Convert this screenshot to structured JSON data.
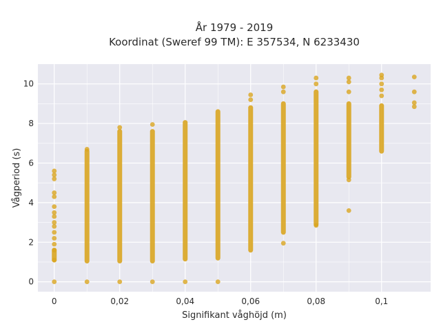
{
  "chart_data": {
    "type": "scatter",
    "title_line1": "År 1979 - 2019",
    "title_line2": "Koordinat (Sweref 99 TM): E 357534, N 6233430",
    "xlabel": "Signifikant våghöjd (m)",
    "ylabel": "Vågperiod (s)",
    "xlim": [
      -0.005,
      0.115
    ],
    "ylim": [
      -0.5,
      11
    ],
    "x_ticks": [
      0,
      0.02,
      0.04,
      0.06,
      0.08,
      0.1
    ],
    "x_tick_labels": [
      "0",
      "0,02",
      "0,04",
      "0,06",
      "0,08",
      "0,1"
    ],
    "y_ticks": [
      0,
      2,
      4,
      6,
      8,
      10
    ],
    "y_tick_labels": [
      "0",
      "2",
      "4",
      "6",
      "8",
      "10"
    ],
    "grid": true,
    "colors": {
      "marker": "#d9a521",
      "plot_bg": "#e8e8f0",
      "grid": "#ffffff"
    },
    "series": [
      {
        "points": [
          {
            "x": 0,
            "y": [
              0,
              1.1,
              1.6,
              1.9,
              2.2,
              2.5,
              2.8,
              3.0,
              3.3,
              3.5,
              3.8,
              4.3,
              4.5,
              5.2,
              5.4,
              5.6
            ]
          },
          {
            "x": 0,
            "range": [
              1.1,
              1.6
            ]
          },
          {
            "x": 0.01,
            "y": [
              0,
              6.7
            ]
          },
          {
            "x": 0.01,
            "range": [
              1.05,
              6.6
            ]
          },
          {
            "x": 0.02,
            "y": [
              0,
              7.8
            ]
          },
          {
            "x": 0.02,
            "range": [
              1.05,
              7.6
            ]
          },
          {
            "x": 0.03,
            "y": [
              0,
              7.95
            ]
          },
          {
            "x": 0.03,
            "range": [
              1.05,
              7.6
            ]
          },
          {
            "x": 0.04,
            "y": [
              0
            ]
          },
          {
            "x": 0.04,
            "range": [
              1.15,
              8.05
            ]
          },
          {
            "x": 0.05,
            "y": [
              0
            ]
          },
          {
            "x": 0.05,
            "range": [
              1.2,
              8.6
            ]
          },
          {
            "x": 0.06,
            "y": [
              9.2,
              9.45
            ]
          },
          {
            "x": 0.06,
            "range": [
              1.6,
              8.8
            ]
          },
          {
            "x": 0.07,
            "y": [
              1.95,
              9.6,
              9.85
            ]
          },
          {
            "x": 0.07,
            "range": [
              2.5,
              9.0
            ]
          },
          {
            "x": 0.08,
            "y": [
              2.85,
              10.0,
              10.3
            ]
          },
          {
            "x": 0.08,
            "range": [
              2.9,
              9.6
            ]
          },
          {
            "x": 0.09,
            "y": [
              3.6,
              5.15,
              9.6,
              10.1,
              10.3
            ]
          },
          {
            "x": 0.09,
            "range": [
              5.3,
              9.0
            ]
          },
          {
            "x": 0.1,
            "y": [
              9.4,
              9.7,
              10.0,
              10.3,
              10.45
            ]
          },
          {
            "x": 0.1,
            "range": [
              6.6,
              8.9
            ]
          },
          {
            "x": 0.11,
            "y": [
              8.85,
              9.05,
              9.6,
              10.35
            ]
          }
        ]
      }
    ]
  }
}
